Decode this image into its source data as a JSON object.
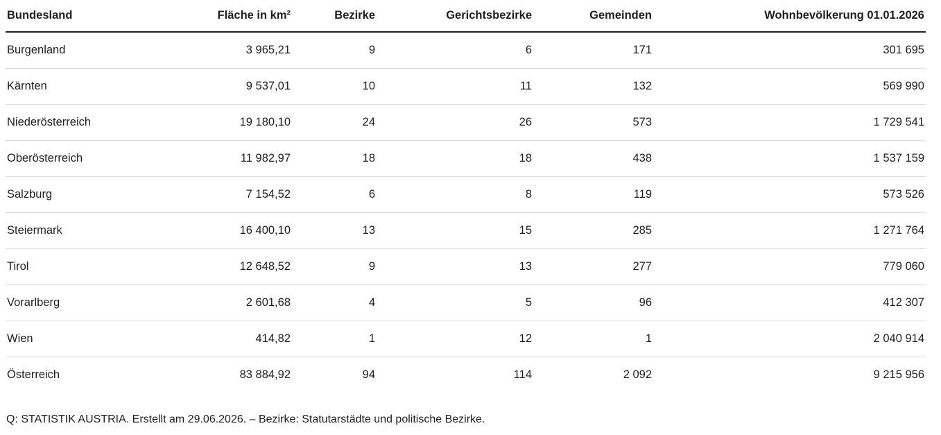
{
  "table": {
    "columns": [
      "Bundesland",
      "Fläche in km²",
      "Bezirke",
      "Gerichtsbezirke",
      "Gemeinden",
      "Wohnbevölkerung 01.01.2026"
    ],
    "rows": [
      [
        "Burgenland",
        "3 965,21",
        "9",
        "6",
        "171",
        "301 695"
      ],
      [
        "Kärnten",
        "9 537,01",
        "10",
        "11",
        "132",
        "569 990"
      ],
      [
        "Niederösterreich",
        "19 180,10",
        "24",
        "26",
        "573",
        "1 729 541"
      ],
      [
        "Oberösterreich",
        "11 982,97",
        "18",
        "18",
        "438",
        "1 537 159"
      ],
      [
        "Salzburg",
        "7 154,52",
        "6",
        "8",
        "119",
        "573 526"
      ],
      [
        "Steiermark",
        "16 400,10",
        "13",
        "15",
        "285",
        "1 271 764"
      ],
      [
        "Tirol",
        "12 648,52",
        "9",
        "13",
        "277",
        "779 060"
      ],
      [
        "Vorarlberg",
        "2 601,68",
        "4",
        "5",
        "96",
        "412 307"
      ],
      [
        "Wien",
        "414,82",
        "1",
        "12",
        "1",
        "2 040 914"
      ],
      [
        "Österreich",
        "83 884,92",
        "94",
        "114",
        "2 092",
        "9 215 956"
      ]
    ]
  },
  "source_note": "Q: STATISTIK AUSTRIA. Erstellt am 29.06.2026. – Bezirke: Statutarstädte und politische Bezirke."
}
